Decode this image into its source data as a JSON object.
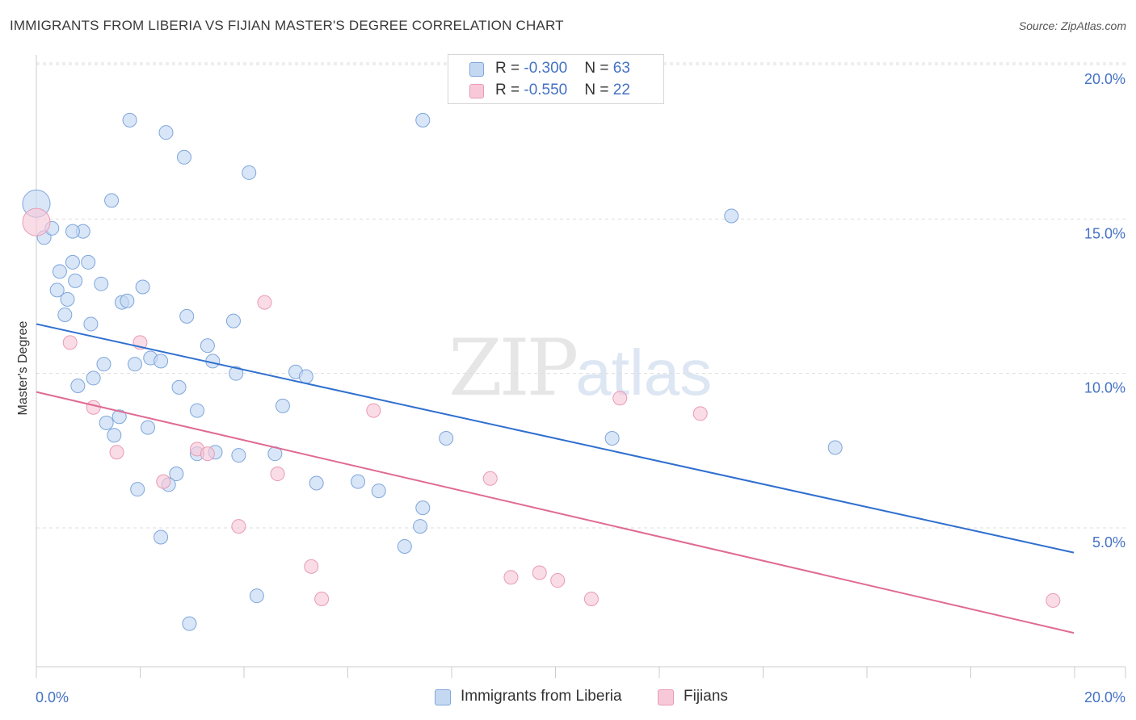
{
  "header": {
    "title": "IMMIGRANTS FROM LIBERIA VS FIJIAN MASTER'S DEGREE CORRELATION CHART",
    "source": "Source: ZipAtlas.com"
  },
  "watermark": {
    "zip": "ZIP",
    "atlas": "atlas"
  },
  "legend": {
    "rows": [
      {
        "r_label": "R = ",
        "r_value": "-0.300",
        "n_label": "N = ",
        "n_value": "63"
      },
      {
        "r_label": "R = ",
        "r_value": "-0.550",
        "n_label": "N = ",
        "n_value": "22"
      }
    ]
  },
  "bottom_legend": {
    "series1": "Immigrants from Liberia",
    "series2": "Fijians"
  },
  "chart_data": {
    "type": "scatter",
    "title": "IMMIGRANTS FROM LIBERIA VS FIJIAN MASTER'S DEGREE CORRELATION CHART",
    "xlabel": "",
    "ylabel": "Master's Degree",
    "xlim": [
      0,
      20
    ],
    "ylim": [
      0,
      20.5
    ],
    "x_tick_labels": [
      {
        "value": 0,
        "label": "0.0%"
      },
      {
        "value": 20,
        "label": "20.0%"
      }
    ],
    "y_tick_labels": [
      {
        "value": 5,
        "label": "5.0%"
      },
      {
        "value": 10,
        "label": "10.0%"
      },
      {
        "value": 15,
        "label": "15.0%"
      },
      {
        "value": 20,
        "label": "20.0%"
      }
    ],
    "grid": true,
    "colors": {
      "series1_fill": "#c5d8f2",
      "series1_stroke": "#7ea6dc",
      "series1_line": "#2f6fcf",
      "series2_fill": "#f7c9d8",
      "series2_stroke": "#e99ab5",
      "series2_line": "#e06a93",
      "axis_label": "#4472c4",
      "grid": "#dddddd"
    },
    "series": [
      {
        "name": "Immigrants from Liberia",
        "R": -0.3,
        "N": 63,
        "trend": {
          "x0": 0,
          "y0": 11.6,
          "x1": 20,
          "y1": 4.2
        },
        "points": [
          {
            "x": 0.0,
            "y": 15.5,
            "big": true
          },
          {
            "x": 0.15,
            "y": 14.4
          },
          {
            "x": 0.3,
            "y": 14.7
          },
          {
            "x": 0.9,
            "y": 14.6
          },
          {
            "x": 1.8,
            "y": 18.2
          },
          {
            "x": 2.5,
            "y": 17.8
          },
          {
            "x": 2.85,
            "y": 17.0
          },
          {
            "x": 4.1,
            "y": 16.5
          },
          {
            "x": 7.45,
            "y": 18.2
          },
          {
            "x": 13.4,
            "y": 15.1
          },
          {
            "x": 1.45,
            "y": 15.6
          },
          {
            "x": 0.45,
            "y": 13.3
          },
          {
            "x": 0.7,
            "y": 13.6
          },
          {
            "x": 1.0,
            "y": 13.6
          },
          {
            "x": 0.75,
            "y": 13.0
          },
          {
            "x": 1.25,
            "y": 12.9
          },
          {
            "x": 0.4,
            "y": 12.7
          },
          {
            "x": 0.6,
            "y": 12.4
          },
          {
            "x": 1.65,
            "y": 12.3
          },
          {
            "x": 1.75,
            "y": 12.35
          },
          {
            "x": 2.05,
            "y": 12.8
          },
          {
            "x": 0.55,
            "y": 11.9
          },
          {
            "x": 1.05,
            "y": 11.6
          },
          {
            "x": 2.9,
            "y": 11.85
          },
          {
            "x": 3.8,
            "y": 11.7
          },
          {
            "x": 3.3,
            "y": 10.9
          },
          {
            "x": 1.3,
            "y": 10.3
          },
          {
            "x": 1.9,
            "y": 10.3
          },
          {
            "x": 2.2,
            "y": 10.5
          },
          {
            "x": 2.4,
            "y": 10.4
          },
          {
            "x": 3.4,
            "y": 10.4
          },
          {
            "x": 3.85,
            "y": 10.0
          },
          {
            "x": 5.0,
            "y": 10.05
          },
          {
            "x": 5.2,
            "y": 9.9
          },
          {
            "x": 0.8,
            "y": 9.6
          },
          {
            "x": 1.1,
            "y": 9.85
          },
          {
            "x": 2.75,
            "y": 9.55
          },
          {
            "x": 3.1,
            "y": 8.8
          },
          {
            "x": 4.75,
            "y": 8.95
          },
          {
            "x": 1.35,
            "y": 8.4
          },
          {
            "x": 1.6,
            "y": 8.6
          },
          {
            "x": 1.5,
            "y": 8.0
          },
          {
            "x": 2.15,
            "y": 8.25
          },
          {
            "x": 7.9,
            "y": 7.9
          },
          {
            "x": 11.1,
            "y": 7.9
          },
          {
            "x": 15.4,
            "y": 7.6
          },
          {
            "x": 3.1,
            "y": 7.4
          },
          {
            "x": 3.45,
            "y": 7.45
          },
          {
            "x": 3.9,
            "y": 7.35
          },
          {
            "x": 4.6,
            "y": 7.4
          },
          {
            "x": 2.7,
            "y": 6.75
          },
          {
            "x": 2.55,
            "y": 6.4
          },
          {
            "x": 1.95,
            "y": 6.25
          },
          {
            "x": 5.4,
            "y": 6.45
          },
          {
            "x": 6.2,
            "y": 6.5
          },
          {
            "x": 6.6,
            "y": 6.2
          },
          {
            "x": 7.45,
            "y": 5.65
          },
          {
            "x": 7.4,
            "y": 5.05
          },
          {
            "x": 2.4,
            "y": 4.7
          },
          {
            "x": 7.1,
            "y": 4.4
          },
          {
            "x": 4.25,
            "y": 2.8
          },
          {
            "x": 2.95,
            "y": 1.9
          },
          {
            "x": 0.7,
            "y": 14.6
          }
        ]
      },
      {
        "name": "Fijians",
        "R": -0.55,
        "N": 22,
        "trend": {
          "x0": 0,
          "y0": 9.4,
          "x1": 20,
          "y1": 1.6
        },
        "points": [
          {
            "x": 0.0,
            "y": 14.9,
            "big": true
          },
          {
            "x": 4.4,
            "y": 12.3
          },
          {
            "x": 0.65,
            "y": 11.0
          },
          {
            "x": 2.0,
            "y": 11.0
          },
          {
            "x": 1.1,
            "y": 8.9
          },
          {
            "x": 6.5,
            "y": 8.8
          },
          {
            "x": 11.25,
            "y": 9.2
          },
          {
            "x": 12.8,
            "y": 8.7
          },
          {
            "x": 1.55,
            "y": 7.45
          },
          {
            "x": 3.1,
            "y": 7.55
          },
          {
            "x": 3.3,
            "y": 7.4
          },
          {
            "x": 4.65,
            "y": 6.75
          },
          {
            "x": 8.75,
            "y": 6.6
          },
          {
            "x": 2.45,
            "y": 6.5
          },
          {
            "x": 3.9,
            "y": 5.05
          },
          {
            "x": 5.3,
            "y": 3.75
          },
          {
            "x": 5.5,
            "y": 2.7
          },
          {
            "x": 9.15,
            "y": 3.4
          },
          {
            "x": 9.7,
            "y": 3.55
          },
          {
            "x": 10.05,
            "y": 3.3
          },
          {
            "x": 10.7,
            "y": 2.7
          },
          {
            "x": 19.6,
            "y": 2.65
          }
        ]
      }
    ]
  }
}
